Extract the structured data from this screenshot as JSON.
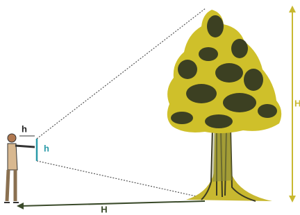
{
  "labels": {
    "arm": "h",
    "stick": "h",
    "distance": "H",
    "height": "H"
  }
}
